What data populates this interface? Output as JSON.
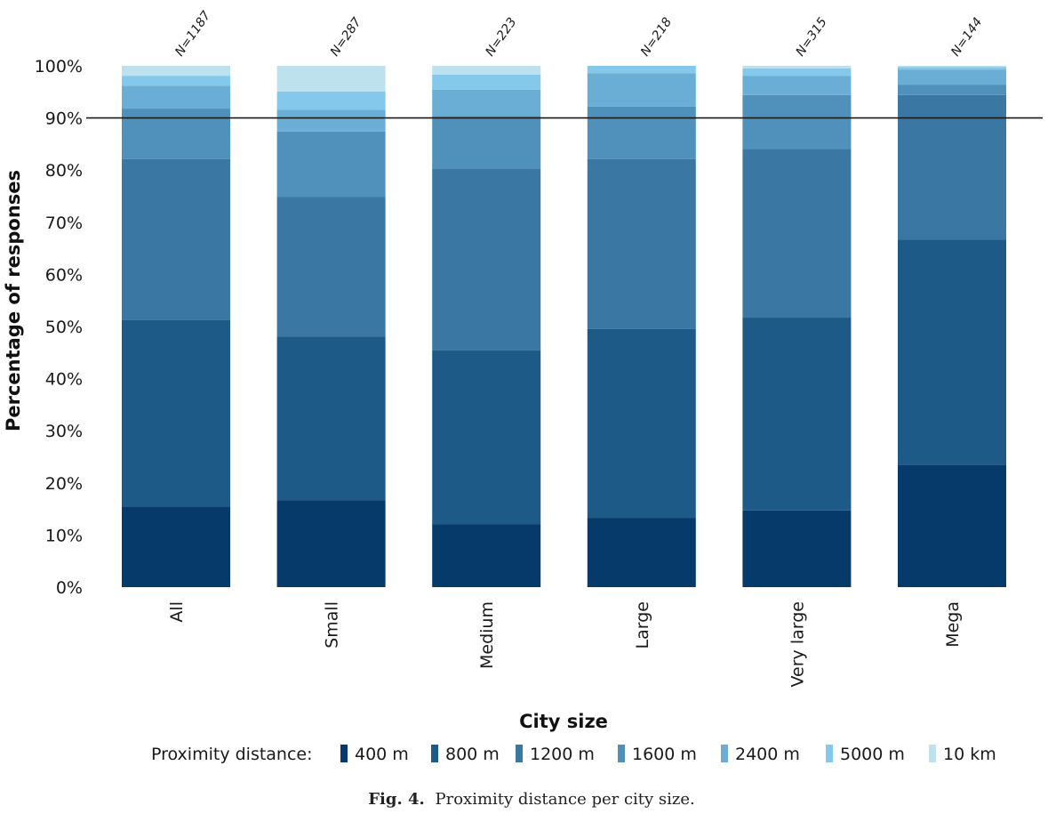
{
  "chart_data": {
    "type": "bar",
    "stacked": true,
    "title": "",
    "xlabel": "City size",
    "ylabel": "Percentage of responses",
    "ylim": [
      0,
      100
    ],
    "yticks": [
      "0%",
      "10%",
      "20%",
      "30%",
      "40%",
      "50%",
      "60%",
      "70%",
      "80%",
      "90%",
      "100%"
    ],
    "reference_line": {
      "value": 90,
      "color": "#1a1a1a"
    },
    "categories": [
      "All",
      "Small",
      "Medium",
      "Large",
      "Very large",
      "Mega"
    ],
    "sample_sizes": [
      "N=1187",
      "N=287",
      "N=223",
      "N=218",
      "N=315",
      "N=144"
    ],
    "legend_title": "Proximity distance:",
    "legend_position": "bottom",
    "series": [
      {
        "name": "400 m",
        "color": "#063a6b",
        "values": [
          15.5,
          16.7,
          12.1,
          13.3,
          14.7,
          23.5
        ]
      },
      {
        "name": "800 m",
        "color": "#1d5a87",
        "values": [
          35.7,
          31.4,
          33.3,
          36.2,
          37.0,
          43.2
        ]
      },
      {
        "name": "1200 m",
        "color": "#3a77a3",
        "values": [
          30.9,
          26.8,
          34.8,
          32.6,
          32.4,
          27.7
        ]
      },
      {
        "name": "1600 m",
        "color": "#4f91bb",
        "values": [
          9.7,
          12.5,
          10.2,
          10.1,
          10.3,
          2.0
        ]
      },
      {
        "name": "2400 m",
        "color": "#6aaed5",
        "values": [
          4.4,
          4.2,
          5.0,
          6.4,
          3.7,
          2.9
        ]
      },
      {
        "name": "5000 m",
        "color": "#84c9ec",
        "values": [
          1.9,
          3.5,
          2.9,
          1.4,
          1.4,
          0.5
        ]
      },
      {
        "name": "10 km",
        "color": "#bde2ee",
        "values": [
          1.9,
          4.9,
          1.7,
          0.0,
          0.5,
          0.2
        ]
      }
    ]
  },
  "caption": {
    "label": "Fig. 4.",
    "text": "Proximity distance per city size."
  }
}
